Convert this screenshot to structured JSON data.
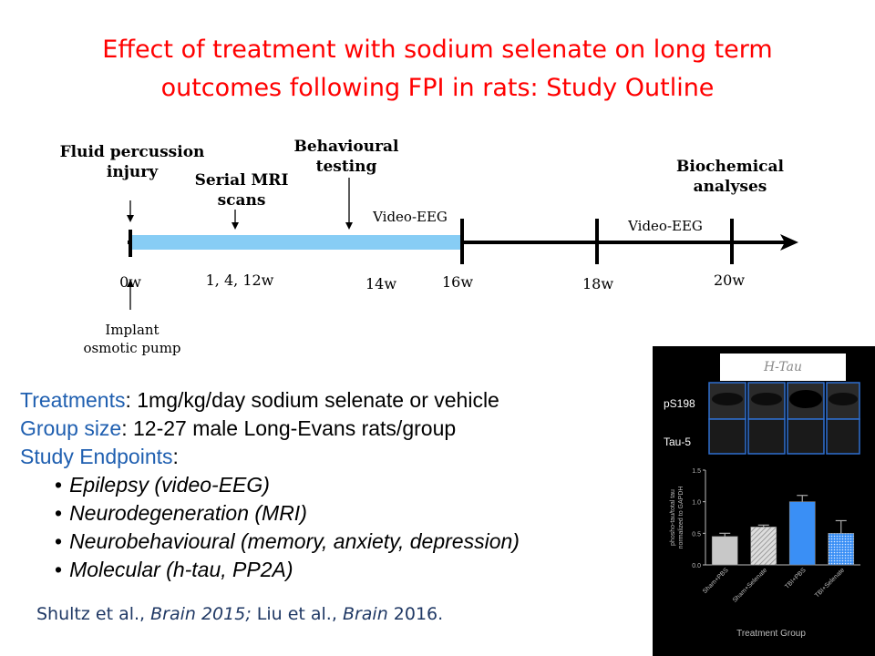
{
  "title": {
    "line1": "Effect of treatment with sodium selenate on long term",
    "line2": "outcomes following FPI in rats: Study Outline"
  },
  "timeline": {
    "events": {
      "fpi_line1": "Fluid percussion",
      "fpi_line2": "injury",
      "mri_line1": "Serial MRI",
      "mri_line2": "scans",
      "behav_line1": "Behavioural",
      "behav_line2": "testing",
      "biochem_line1": "Biochemical",
      "biochem_line2": "analyses"
    },
    "video_eeg_1": "Video-EEG",
    "video_eeg_2": "Video-EEG",
    "weeks": {
      "w0": "0w",
      "w1_4_12": "1, 4, 12w",
      "w14": "14w",
      "w16": "16w",
      "w18": "18w",
      "w20": "20w"
    },
    "implant_line1": "Implant",
    "implant_line2": "osmotic pump",
    "colors": {
      "treatment_bar": "#87cdf5",
      "axis": "#000000"
    }
  },
  "details": {
    "treatments_label": "Treatments",
    "treatments_value": ": 1mg/kg/day sodium selenate or vehicle",
    "group_label": "Group size",
    "group_value": ": 12-27 male Long-Evans rats/group",
    "endpoints_label": "Study Endpoints",
    "endpoints_colon": ":",
    "endpoints": [
      "Epilepsy (video-EEG)",
      "Neurodegeneration (MRI)",
      "Neurobehavioural (memory, anxiety, depression)",
      "Molecular (h-tau, PP2A)"
    ]
  },
  "reference": {
    "a1": "Shultz et al., ",
    "j1": "Brain 2015;",
    "a2": " Liu et al., ",
    "j2": "Brain",
    "y2": " 2016."
  },
  "inset": {
    "header": "H-Tau",
    "row1": "pS198",
    "row2": "Tau-5",
    "chart_data": {
      "type": "bar",
      "categories": [
        "Sham+PBS",
        "Sham+Selenate",
        "TBI+PBS",
        "TBI+Selenate"
      ],
      "values": [
        0.45,
        0.6,
        1.0,
        0.5
      ],
      "errors": [
        0.05,
        0.03,
        0.1,
        0.2
      ],
      "ylabel": "phosho-tau/total tau normalized to GAPDH",
      "xlabel": "Treatment Group",
      "ylim": [
        0,
        1.5
      ],
      "yticks": [
        "0.0",
        "0.5",
        "1.0",
        "1.5"
      ]
    }
  }
}
